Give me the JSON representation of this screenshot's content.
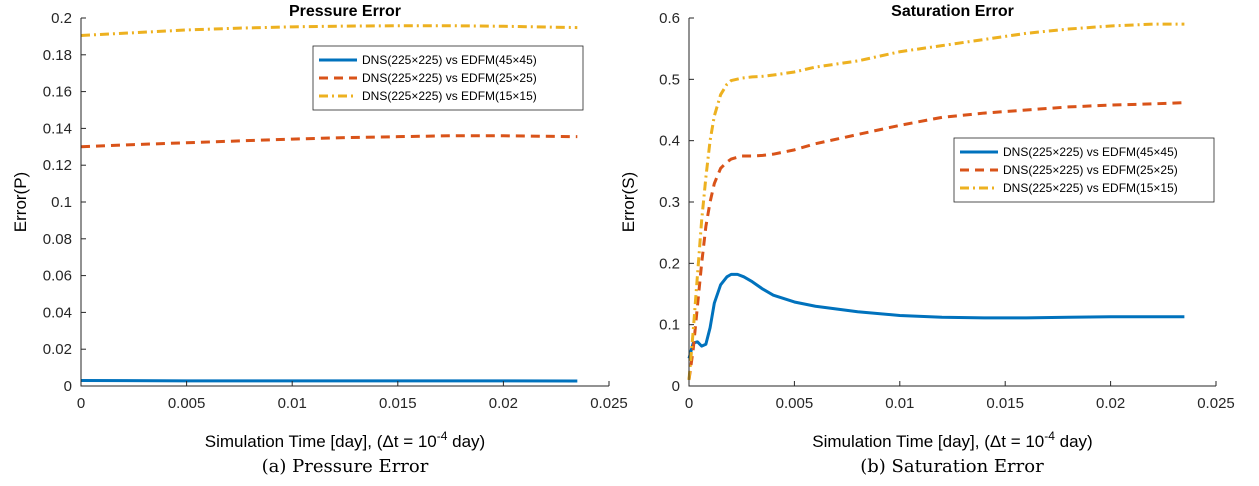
{
  "chart_data": [
    {
      "type": "line",
      "title": "Pressure Error",
      "xlabel": "Simulation Time [day], (Δt = 10",
      "xlabel_sup": "-4",
      "xlabel_tail": " day)",
      "ylabel": "Error(P)",
      "xlim": [
        0,
        0.025
      ],
      "ylim": [
        0,
        0.2
      ],
      "xticks": [
        "0",
        "0.005",
        "0.01",
        "0.015",
        "0.02",
        "0.025"
      ],
      "yticks": [
        "0",
        "0.02",
        "0.04",
        "0.06",
        "0.08",
        "0.1",
        "0.12",
        "0.14",
        "0.16",
        "0.18",
        "0.2"
      ],
      "legend_position": "top-right",
      "caption": "(a) Pressure Error",
      "series": [
        {
          "name": "DNS(225×225) vs EDFM(45×45)",
          "color": "#0072BD",
          "style": "solid",
          "x": [
            0,
            0.005,
            0.01,
            0.015,
            0.02,
            0.0235
          ],
          "y": [
            0.003,
            0.0028,
            0.0028,
            0.0028,
            0.0028,
            0.0027
          ]
        },
        {
          "name": "DNS(225×225) vs EDFM(25×25)",
          "color": "#D95319",
          "style": "dashed",
          "x": [
            0,
            0.0025,
            0.005,
            0.0075,
            0.01,
            0.0125,
            0.015,
            0.0175,
            0.02,
            0.0235
          ],
          "y": [
            0.13,
            0.1312,
            0.1322,
            0.1332,
            0.1342,
            0.135,
            0.1355,
            0.136,
            0.136,
            0.1355
          ]
        },
        {
          "name": "DNS(225×225) vs EDFM(15×15)",
          "color": "#EDB120",
          "style": "dashdot",
          "x": [
            0,
            0.0025,
            0.005,
            0.0075,
            0.01,
            0.0125,
            0.015,
            0.0175,
            0.02,
            0.0235
          ],
          "y": [
            0.1905,
            0.192,
            0.1935,
            0.1945,
            0.1952,
            0.1956,
            0.1958,
            0.1958,
            0.1955,
            0.1948
          ]
        }
      ]
    },
    {
      "type": "line",
      "title": "Saturation Error",
      "xlabel": "Simulation Time [day], (Δt = 10",
      "xlabel_sup": "-4",
      "xlabel_tail": " day)",
      "ylabel": "Error(S)",
      "xlim": [
        0,
        0.025
      ],
      "ylim": [
        0,
        0.6
      ],
      "xticks": [
        "0",
        "0.005",
        "0.01",
        "0.015",
        "0.02",
        "0.025"
      ],
      "yticks": [
        "0",
        "0.1",
        "0.2",
        "0.3",
        "0.4",
        "0.5",
        "0.6"
      ],
      "legend_position": "middle-right",
      "caption": "(b) Saturation Error",
      "series": [
        {
          "name": "DNS(225×225) vs EDFM(45×45)",
          "color": "#0072BD",
          "style": "solid",
          "x": [
            0,
            0.0002,
            0.0004,
            0.0006,
            0.0008,
            0.001,
            0.0012,
            0.0015,
            0.0018,
            0.002,
            0.0023,
            0.0026,
            0.003,
            0.0035,
            0.004,
            0.005,
            0.006,
            0.008,
            0.01,
            0.012,
            0.014,
            0.016,
            0.018,
            0.02,
            0.022,
            0.0235
          ],
          "y": [
            0.045,
            0.07,
            0.072,
            0.065,
            0.068,
            0.095,
            0.135,
            0.165,
            0.178,
            0.182,
            0.182,
            0.178,
            0.17,
            0.158,
            0.148,
            0.137,
            0.13,
            0.121,
            0.115,
            0.112,
            0.111,
            0.111,
            0.112,
            0.113,
            0.113,
            0.113
          ]
        },
        {
          "name": "DNS(225×225) vs EDFM(25×25)",
          "color": "#D95319",
          "style": "dashed",
          "x": [
            0,
            0.0002,
            0.0004,
            0.0006,
            0.0008,
            0.001,
            0.0012,
            0.0015,
            0.0018,
            0.002,
            0.0025,
            0.003,
            0.0035,
            0.004,
            0.005,
            0.006,
            0.008,
            0.01,
            0.012,
            0.014,
            0.016,
            0.018,
            0.02,
            0.022,
            0.0235
          ],
          "y": [
            0.01,
            0.06,
            0.13,
            0.2,
            0.26,
            0.3,
            0.33,
            0.355,
            0.365,
            0.37,
            0.375,
            0.375,
            0.376,
            0.378,
            0.385,
            0.395,
            0.41,
            0.425,
            0.438,
            0.445,
            0.45,
            0.455,
            0.458,
            0.46,
            0.462
          ]
        },
        {
          "name": "DNS(225×225) vs EDFM(15×15)",
          "color": "#EDB120",
          "style": "dashdot",
          "x": [
            0,
            0.0002,
            0.0004,
            0.0006,
            0.0008,
            0.001,
            0.0012,
            0.0015,
            0.0018,
            0.002,
            0.0025,
            0.003,
            0.0035,
            0.004,
            0.005,
            0.006,
            0.008,
            0.01,
            0.012,
            0.014,
            0.016,
            0.018,
            0.02,
            0.022,
            0.0235
          ],
          "y": [
            0.01,
            0.09,
            0.18,
            0.27,
            0.34,
            0.4,
            0.44,
            0.475,
            0.492,
            0.498,
            0.502,
            0.504,
            0.505,
            0.507,
            0.512,
            0.52,
            0.53,
            0.545,
            0.555,
            0.565,
            0.575,
            0.582,
            0.587,
            0.59,
            0.59
          ]
        }
      ]
    }
  ]
}
